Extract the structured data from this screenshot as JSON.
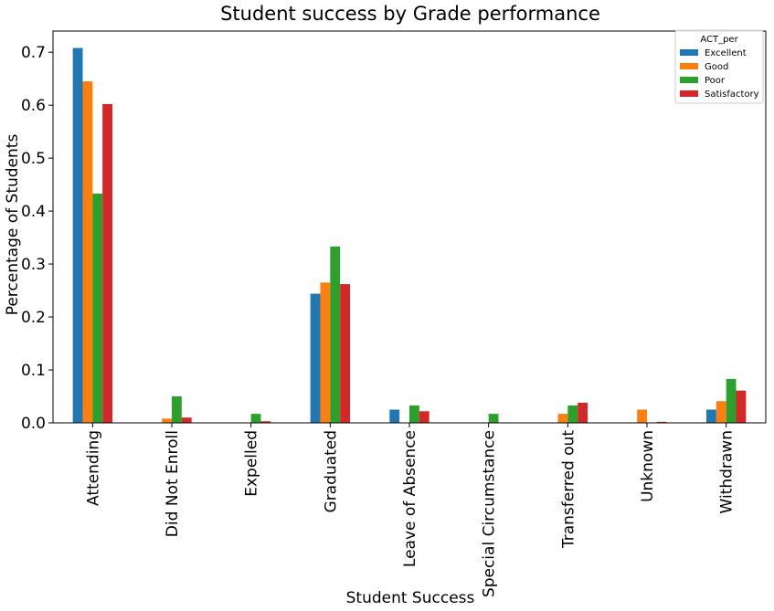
{
  "chart_data": {
    "type": "bar",
    "title": "Student success by Grade performance",
    "xlabel": "Student Success",
    "ylabel": "Percentage of Students",
    "categories": [
      "Attending",
      "Did Not Enroll",
      "Expelled",
      "Graduated",
      "Leave of Absence",
      "Special Circumstance",
      "Transferred out",
      "Unknown",
      "Withdrawn"
    ],
    "ylim": [
      0,
      0.74
    ],
    "yticks": [
      "0.0",
      "0.1",
      "0.2",
      "0.3",
      "0.4",
      "0.5",
      "0.6",
      "0.7"
    ],
    "grid": false,
    "legend": {
      "title": "ACT_per",
      "placement": "top-right"
    },
    "series": [
      {
        "name": "Excellent",
        "color": "#1f77b4",
        "values": [
          0.708,
          0,
          0,
          0.244,
          0.025,
          0,
          0,
          0,
          0.025
        ]
      },
      {
        "name": "Good",
        "color": "#ff7f0e",
        "values": [
          0.645,
          0.008,
          0,
          0.265,
          0,
          0,
          0.017,
          0.025,
          0.041
        ]
      },
      {
        "name": "Poor",
        "color": "#2ca02c",
        "values": [
          0.433,
          0.05,
          0.017,
          0.333,
          0.033,
          0.017,
          0.033,
          0,
          0.083
        ]
      },
      {
        "name": "Satisfactory",
        "color": "#d62728",
        "values": [
          0.602,
          0.01,
          0.003,
          0.262,
          0.022,
          0,
          0.038,
          0.002,
          0.061
        ]
      }
    ]
  }
}
